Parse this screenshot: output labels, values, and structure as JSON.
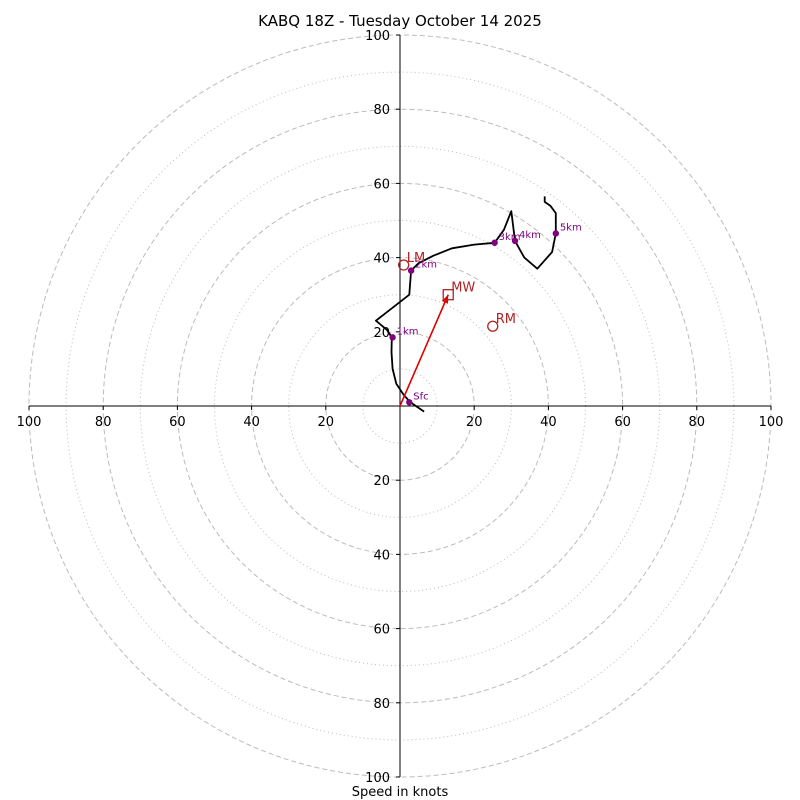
{
  "chart_data": {
    "type": "hodograph",
    "title": "KABQ 18Z - Tuesday October 14 2025",
    "xlabel": "Speed in knots",
    "range": [
      -100,
      100
    ],
    "ring_major": [
      20,
      40,
      60,
      80,
      100
    ],
    "ring_minor": [
      10,
      30,
      50,
      70,
      90
    ],
    "ticks": [
      {
        "value": -100,
        "label": "100"
      },
      {
        "value": -80,
        "label": "80"
      },
      {
        "value": -60,
        "label": "60"
      },
      {
        "value": -40,
        "label": "40"
      },
      {
        "value": -20,
        "label": "20"
      },
      {
        "value": 20,
        "label": "20"
      },
      {
        "value": 40,
        "label": "40"
      },
      {
        "value": 60,
        "label": "60"
      },
      {
        "value": 80,
        "label": "80"
      },
      {
        "value": 100,
        "label": "100"
      }
    ],
    "trace": [
      [
        6.5,
        -1.5
      ],
      [
        2.8,
        1.0
      ],
      [
        1.0,
        3.0
      ],
      [
        -1.0,
        6.0
      ],
      [
        -2.0,
        10.0
      ],
      [
        -2.3,
        14.5
      ],
      [
        -2.2,
        18.5
      ],
      [
        -3.5,
        20.5
      ],
      [
        -6.5,
        23.0
      ],
      [
        -2.0,
        26.5
      ],
      [
        2.5,
        30.0
      ],
      [
        3.0,
        36.5
      ],
      [
        5.0,
        38.5
      ],
      [
        9.0,
        40.5
      ],
      [
        14.0,
        42.5
      ],
      [
        20.0,
        43.5
      ],
      [
        25.5,
        44.0
      ],
      [
        28.0,
        47.5
      ],
      [
        30.0,
        52.5
      ],
      [
        31.0,
        44.5
      ],
      [
        33.5,
        40.0
      ],
      [
        37.0,
        37.0
      ],
      [
        41.0,
        41.5
      ],
      [
        42.0,
        46.5
      ],
      [
        42.0,
        50.0
      ],
      [
        42.0,
        52.0
      ],
      [
        40.5,
        54.0
      ],
      [
        39.0,
        55.0
      ],
      [
        39.0,
        56.5
      ]
    ],
    "height_markers": [
      {
        "label": "Sfc",
        "u": 2.5,
        "v": 1.0
      },
      {
        "label": "1km",
        "u": -2.0,
        "v": 18.5
      },
      {
        "label": "2km",
        "u": 3.0,
        "v": 36.5
      },
      {
        "label": "3km",
        "u": 25.5,
        "v": 44.0
      },
      {
        "label": "4km",
        "u": 31.0,
        "v": 44.5
      },
      {
        "label": "5km",
        "u": 42.0,
        "v": 46.5
      }
    ],
    "storm_motion": [
      {
        "label": "LM",
        "u": 1.0,
        "v": 38.0,
        "marker": "circle"
      },
      {
        "label": "RM",
        "u": 25.0,
        "v": 21.5,
        "marker": "circle"
      },
      {
        "label": "MW",
        "u": 13.0,
        "v": 30.0,
        "marker": "square"
      }
    ],
    "shear_vector": {
      "from": [
        0,
        0
      ],
      "to": [
        13.0,
        30.0
      ]
    }
  },
  "colors": {
    "grid": "#bbbbbb",
    "axis": "#000000",
    "trace": "#000000",
    "height_marker": "#800080",
    "storm_motion": "#b22222",
    "shear_vector": "#e00000"
  }
}
